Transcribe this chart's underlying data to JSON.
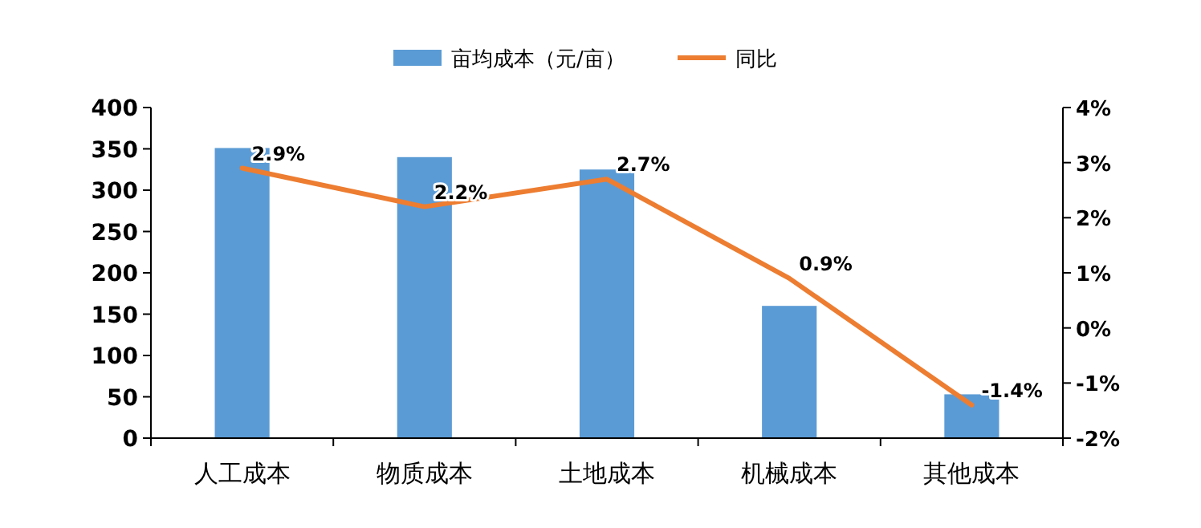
{
  "chart_data": {
    "type": "bar",
    "categories": [
      "人工成本",
      "物质成本",
      "土地成本",
      "机械成本",
      "其他成本"
    ],
    "series": [
      {
        "name": "亩均成本（元/亩）",
        "color": "#5b9bd5",
        "values": [
          351,
          340,
          325,
          160,
          53
        ]
      },
      {
        "name": "同比",
        "type": "line",
        "axis": "y2",
        "color": "#ed7d31",
        "values": [
          2.9,
          2.2,
          2.7,
          0.9,
          -1.4
        ],
        "value_labels": [
          "2.9%",
          "2.2%",
          "2.7%",
          "0.9%",
          "-1.4%"
        ]
      }
    ],
    "ylim": [
      0,
      400
    ],
    "yticks": [
      0,
      50,
      100,
      150,
      200,
      250,
      300,
      350,
      400
    ],
    "y2lim": [
      -2,
      4
    ],
    "y2ticks": [
      {
        "value": -2,
        "label": "-2%"
      },
      {
        "value": -1,
        "label": "-1%"
      },
      {
        "value": 0,
        "label": "0%"
      },
      {
        "value": 1,
        "label": "1%"
      },
      {
        "value": 2,
        "label": "2%"
      },
      {
        "value": 3,
        "label": "3%"
      },
      {
        "value": 4,
        "label": "4%"
      }
    ],
    "grid": false,
    "legend": "top",
    "marker": "none",
    "line_style": "solid"
  }
}
